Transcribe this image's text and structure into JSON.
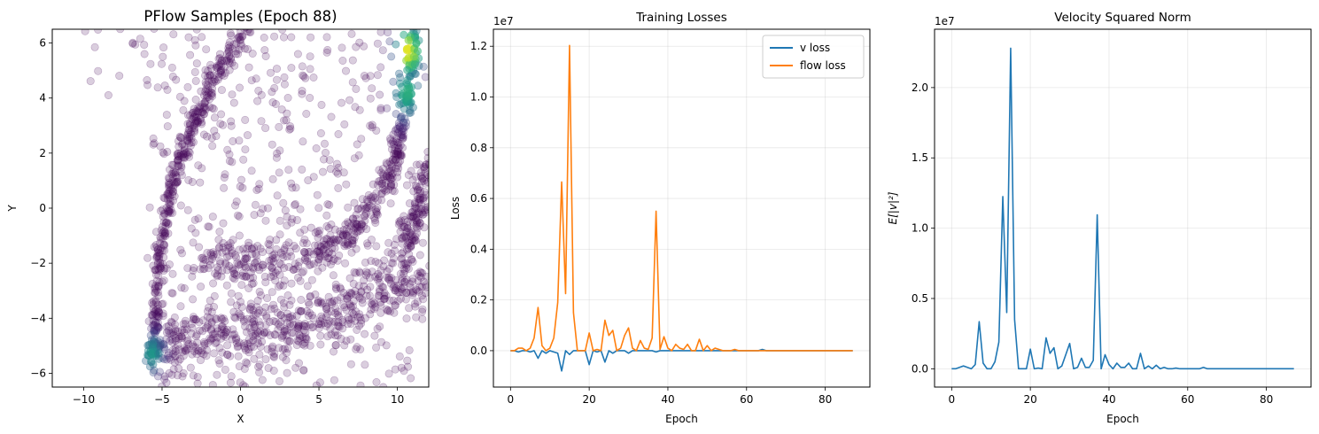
{
  "chart_data": [
    {
      "type": "scatter",
      "title": "PFlow Samples (Epoch 88)",
      "xlabel": "X",
      "ylabel": "Y",
      "xlim": [
        -12,
        12
      ],
      "ylim": [
        -6.5,
        6.5
      ],
      "xticks": [
        -10,
        -5,
        0,
        5,
        10
      ],
      "yticks": [
        -6,
        -4,
        -2,
        0,
        2,
        4,
        6
      ],
      "xtick_labels": [
        "−10",
        "−5",
        "0",
        "5",
        "10"
      ],
      "ytick_labels": [
        "−6",
        "−4",
        "−2",
        "0",
        "2",
        "4",
        "6"
      ],
      "grid": false,
      "colormap": "viridis",
      "point_alpha": 0.2,
      "density_structures": [
        {
          "name": "left-arm",
          "points": [
            [
              -5.6,
              -5.4
            ],
            [
              -5.4,
              -4.5
            ],
            [
              -5.3,
              -3.0
            ],
            [
              -5.1,
              -1.5
            ],
            [
              -4.7,
              0.0
            ],
            [
              -4.2,
              1.2
            ],
            [
              -3.5,
              2.4
            ],
            [
              -2.7,
              3.5
            ],
            [
              -1.8,
              4.6
            ],
            [
              -0.8,
              5.6
            ],
            [
              0.5,
              6.5
            ]
          ]
        },
        {
          "name": "bottom-band",
          "points": [
            [
              -5.6,
              -5.4
            ],
            [
              -4.0,
              -4.9
            ],
            [
              -2.0,
              -4.6
            ],
            [
              0.0,
              -4.5
            ],
            [
              2.0,
              -4.4
            ],
            [
              4.0,
              -4.2
            ],
            [
              6.0,
              -3.9
            ],
            [
              8.0,
              -3.4
            ],
            [
              10.0,
              -2.9
            ],
            [
              12.0,
              -2.4
            ]
          ]
        },
        {
          "name": "middle-curve",
          "points": [
            [
              -2.5,
              -2.0
            ],
            [
              0.0,
              -2.0
            ],
            [
              2.5,
              -1.9
            ],
            [
              5.0,
              -1.6
            ],
            [
              6.5,
              -1.2
            ],
            [
              8.0,
              -0.3
            ],
            [
              9.2,
              0.8
            ],
            [
              10.0,
              2.0
            ],
            [
              10.5,
              3.5
            ],
            [
              10.8,
              5.0
            ],
            [
              11.0,
              6.5
            ]
          ]
        },
        {
          "name": "right-edge",
          "points": [
            [
              12.0,
              1.5
            ],
            [
              11.3,
              0.0
            ],
            [
              10.8,
              -1.0
            ],
            [
              10.3,
              -2.0
            ]
          ]
        }
      ],
      "density_peaks": [
        [
          -5.6,
          -5.3
        ],
        [
          10.7,
          5.7
        ],
        [
          10.6,
          4.2
        ]
      ]
    },
    {
      "type": "line",
      "title": "Training Losses",
      "xlabel": "Epoch",
      "ylabel": "Loss",
      "scale_label": "1e7",
      "xlim": [
        -4.35,
        91.35
      ],
      "ylim": [
        -0.1434,
        1.2671
      ],
      "xticks": [
        0,
        20,
        40,
        60,
        80
      ],
      "yticks": [
        0.0,
        0.2,
        0.4,
        0.6,
        0.8,
        1.0,
        1.2
      ],
      "xtick_labels": [
        "0",
        "20",
        "40",
        "60",
        "80"
      ],
      "ytick_labels": [
        "0.0",
        "0.2",
        "0.4",
        "0.6",
        "0.8",
        "1.0",
        "1.2"
      ],
      "grid": true,
      "legend": "top-right",
      "x": [
        0,
        1,
        2,
        3,
        4,
        5,
        6,
        7,
        8,
        9,
        10,
        11,
        12,
        13,
        14,
        15,
        16,
        17,
        18,
        19,
        20,
        21,
        22,
        23,
        24,
        25,
        26,
        27,
        28,
        29,
        30,
        31,
        32,
        33,
        34,
        35,
        36,
        37,
        38,
        39,
        40,
        41,
        42,
        43,
        44,
        45,
        46,
        47,
        48,
        49,
        50,
        51,
        52,
        53,
        54,
        55,
        56,
        57,
        58,
        59,
        60,
        61,
        62,
        63,
        64,
        65,
        66,
        67,
        68,
        69,
        70,
        71,
        72,
        73,
        74,
        75,
        76,
        77,
        78,
        79,
        80,
        81,
        82,
        83,
        84,
        85,
        86,
        87
      ],
      "series": [
        {
          "name": "v loss",
          "color": "#1f77b4",
          "values": [
            0,
            0,
            -0.005,
            0,
            0,
            -0.005,
            0,
            -0.03,
            0,
            -0.01,
            0,
            -0.005,
            -0.01,
            -0.08,
            0,
            -0.015,
            0,
            0,
            0,
            0,
            -0.055,
            0,
            -0.005,
            0,
            -0.045,
            0,
            -0.01,
            0,
            0,
            0,
            -0.01,
            0,
            0,
            0,
            0,
            0,
            0,
            -0.005,
            0,
            0,
            0,
            0,
            0,
            0,
            0,
            0,
            0,
            0,
            0,
            0,
            0,
            0,
            0,
            0,
            0,
            0,
            0,
            0,
            0,
            0,
            0,
            0,
            0,
            0,
            0.005,
            0,
            0,
            0,
            0,
            0,
            0,
            0,
            0,
            0,
            0,
            0,
            0,
            0,
            0,
            0,
            0,
            0,
            0,
            0,
            0,
            0,
            0,
            0
          ]
        },
        {
          "name": "flow loss",
          "color": "#ff7f0e",
          "values": [
            0,
            0,
            0.01,
            0.01,
            0,
            0.01,
            0.05,
            0.17,
            0.02,
            0,
            0.01,
            0.05,
            0.19,
            0.665,
            0.225,
            1.203,
            0.15,
            0,
            0,
            0,
            0.07,
            0,
            0.005,
            0,
            0.12,
            0.06,
            0.08,
            0,
            0.01,
            0.06,
            0.09,
            0.01,
            0,
            0.04,
            0.01,
            0.005,
            0.05,
            0.55,
            0.005,
            0.055,
            0.01,
            0,
            0.025,
            0.01,
            0.005,
            0.025,
            0,
            0,
            0.045,
            0,
            0.02,
            0,
            0.01,
            0.005,
            0,
            0,
            0,
            0.005,
            0,
            0,
            0,
            0,
            0,
            0,
            0,
            0,
            0,
            0,
            0,
            0,
            0,
            0,
            0,
            0,
            0,
            0,
            0,
            0,
            0,
            0,
            0,
            0,
            0,
            0,
            0,
            0,
            0,
            0
          ]
        }
      ]
    },
    {
      "type": "line",
      "title": "Velocity Squared Norm",
      "xlabel": "Epoch",
      "ylabel": "E[|v|²]",
      "scale_label": "1e7",
      "xlim": [
        -4.35,
        91.35
      ],
      "ylim": [
        -0.13,
        2.415
      ],
      "xticks": [
        0,
        20,
        40,
        60,
        80
      ],
      "yticks": [
        0.0,
        0.5,
        1.0,
        1.5,
        2.0
      ],
      "xtick_labels": [
        "0",
        "20",
        "40",
        "60",
        "80"
      ],
      "ytick_labels": [
        "0.0",
        "0.5",
        "1.0",
        "1.5",
        "2.0"
      ],
      "grid": true,
      "series": [
        {
          "color": "#1f77b4",
          "values": [
            0,
            0,
            0.01,
            0.02,
            0.01,
            0,
            0.03,
            0.335,
            0.04,
            0,
            0,
            0.05,
            0.19,
            1.225,
            0.4,
            2.28,
            0.35,
            0,
            0,
            0,
            0.14,
            0,
            0.005,
            0,
            0.22,
            0.11,
            0.15,
            0,
            0.02,
            0.1,
            0.18,
            0,
            0.01,
            0.075,
            0.01,
            0.01,
            0.06,
            1.095,
            0,
            0.1,
            0.03,
            0,
            0.04,
            0.01,
            0.01,
            0.04,
            0,
            0,
            0.11,
            0,
            0.02,
            0,
            0.025,
            0,
            0.01,
            0,
            0,
            0.005,
            0,
            0,
            0,
            0,
            0,
            0,
            0.01,
            0,
            0,
            0,
            0,
            0,
            0,
            0,
            0,
            0,
            0,
            0,
            0,
            0,
            0,
            0,
            0,
            0,
            0,
            0,
            0,
            0,
            0,
            0
          ]
        }
      ]
    }
  ]
}
